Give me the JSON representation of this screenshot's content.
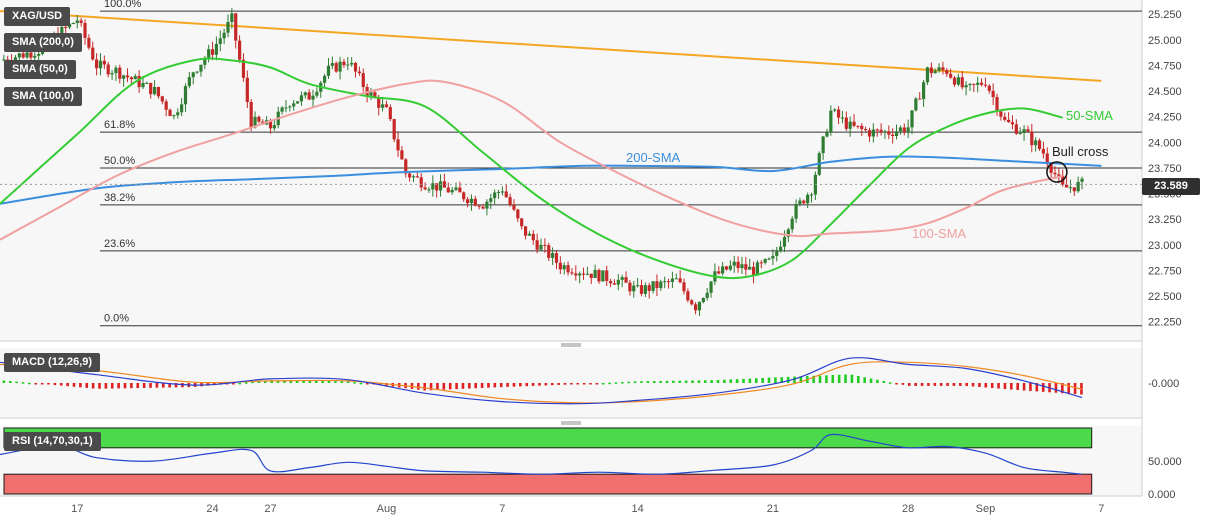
{
  "chart_data": [
    {
      "type": "line",
      "title": "",
      "symbol": "XAG/USD",
      "indicators": [
        "SMA (200,0)",
        "SMA (50,0)",
        "SMA (100,0)"
      ],
      "x_tick_labels": [
        "17",
        "24",
        "27",
        "Aug",
        "7",
        "14",
        "21",
        "28",
        "Sep",
        "7"
      ],
      "x_tick_days": [
        -15,
        -8,
        -5,
        1,
        7,
        14,
        21,
        28,
        32,
        38
      ],
      "ylim": [
        22.1,
        25.35
      ],
      "y_ticks": [
        22.25,
        22.5,
        22.75,
        23.0,
        23.25,
        23.5,
        23.75,
        24.0,
        24.25,
        24.5,
        24.75,
        25.0,
        25.25
      ],
      "y_tick_labels": [
        "22.250",
        "22.500",
        "22.750",
        "23.000",
        "23.250",
        "23.500",
        "23.750",
        "24.000",
        "24.250",
        "24.500",
        "24.750",
        "25.000",
        "25.250"
      ],
      "last_price": 23.589,
      "last_price_label": "23.589",
      "fib_levels": [
        {
          "label": "100.0%",
          "value": 25.28
        },
        {
          "label": "61.8%",
          "value": 24.1
        },
        {
          "label": "50.0%",
          "value": 23.75
        },
        {
          "label": "38.2%",
          "value": 23.39
        },
        {
          "label": "23.6%",
          "value": 22.94
        },
        {
          "label": "0.0%",
          "value": 22.21
        }
      ],
      "trendline": {
        "color": "#f5a623",
        "x": [
          -19,
          38
        ],
        "y": [
          25.28,
          24.6
        ]
      },
      "series": [
        {
          "name": "200-SMA",
          "color": "#3b8ede",
          "x": [
            -19,
            -14,
            -10,
            -6,
            -2,
            2,
            7,
            11,
            14,
            18,
            21,
            24,
            27,
            30,
            33,
            36,
            38
          ],
          "y": [
            23.4,
            23.55,
            23.61,
            23.64,
            23.67,
            23.71,
            23.74,
            23.77,
            23.77,
            23.76,
            23.72,
            23.81,
            23.86,
            23.85,
            23.82,
            23.79,
            23.77
          ]
        },
        {
          "name": "50-SMA",
          "color": "#33cc33",
          "x": [
            -19,
            -15,
            -12,
            -9,
            -7,
            -5,
            -3,
            0,
            3,
            6,
            9,
            12,
            15,
            18,
            20,
            22,
            24,
            26,
            28,
            30,
            32,
            34,
            36
          ],
          "y": [
            23.4,
            24.08,
            24.59,
            24.8,
            24.8,
            24.73,
            24.57,
            24.45,
            24.35,
            23.9,
            23.45,
            23.1,
            22.85,
            22.69,
            22.7,
            22.85,
            23.2,
            23.58,
            23.94,
            24.15,
            24.28,
            24.33,
            24.24
          ]
        },
        {
          "name": "100-SMA",
          "color": "#f0a0a0",
          "x": [
            -19,
            -16,
            -13,
            -10,
            -7,
            -4,
            -1,
            2,
            4,
            7,
            10,
            13,
            16,
            19,
            22,
            24,
            27,
            29,
            31,
            33,
            36
          ],
          "y": [
            23.05,
            23.36,
            23.67,
            23.9,
            24.08,
            24.27,
            24.44,
            24.57,
            24.59,
            24.4,
            24.0,
            23.7,
            23.43,
            23.21,
            23.09,
            23.11,
            23.14,
            23.21,
            23.36,
            23.54,
            23.67
          ]
        },
        {
          "name": "Price",
          "color": "#333333",
          "x": [
            -19,
            -17,
            -15,
            -14,
            -13,
            -11,
            -10,
            -9,
            -8,
            -7,
            -6,
            -5,
            -4,
            -3,
            -2,
            -1,
            0,
            1,
            2,
            3,
            4,
            6,
            7,
            8,
            10,
            11,
            12,
            13,
            14,
            16,
            17,
            18,
            19,
            20,
            21,
            22,
            23,
            24,
            25,
            26,
            27,
            28,
            29,
            30,
            31,
            32,
            33,
            34,
            35,
            36,
            37
          ],
          "y": [
            24.8,
            24.9,
            25.2,
            24.75,
            24.7,
            24.5,
            24.25,
            24.7,
            24.9,
            25.2,
            24.2,
            24.15,
            24.4,
            24.45,
            24.7,
            24.8,
            24.5,
            24.3,
            23.7,
            23.6,
            23.55,
            23.4,
            23.55,
            23.15,
            22.8,
            22.75,
            22.7,
            22.65,
            22.55,
            22.65,
            22.4,
            22.7,
            22.8,
            22.75,
            22.85,
            23.3,
            23.55,
            24.3,
            24.15,
            24.1,
            24.1,
            24.15,
            24.7,
            24.7,
            24.5,
            24.6,
            24.2,
            24.1,
            23.9,
            23.55,
            23.59
          ]
        }
      ],
      "annotations": [
        {
          "text": "200-SMA",
          "color": "#3b8ede"
        },
        {
          "text": "50-SMA",
          "color": "#33cc33"
        },
        {
          "text": "100-SMA",
          "color": "#f0a0a0"
        },
        {
          "text": "Bull cross",
          "color": "#222222"
        }
      ]
    },
    {
      "type": "bar",
      "title": "MACD (12,26,9)",
      "y_tick_labels": [
        "-0.000"
      ],
      "ylim": [
        -0.75,
        0.75
      ],
      "macd_line": {
        "x": [
          -19,
          -14,
          -9,
          -5,
          -1,
          3,
          7,
          11,
          14,
          18,
          22,
          25,
          28,
          31,
          34,
          37
        ],
        "y": [
          0.5,
          0.2,
          -0.05,
          0.1,
          0.08,
          -0.25,
          -0.45,
          -0.5,
          -0.42,
          -0.25,
          0.08,
          0.6,
          0.45,
          0.35,
          0.05,
          -0.35
        ]
      },
      "signal_line": {
        "x": [
          -19,
          -14,
          -9,
          -5,
          -1,
          3,
          7,
          11,
          14,
          18,
          22,
          25,
          28,
          31,
          34,
          37
        ],
        "y": [
          0.45,
          0.3,
          0.02,
          0.05,
          0.05,
          -0.12,
          -0.38,
          -0.48,
          -0.45,
          -0.3,
          -0.03,
          0.45,
          0.5,
          0.4,
          0.18,
          -0.15
        ]
      }
    },
    {
      "type": "line",
      "title": "RSI (14,70,30,1)",
      "ylim": [
        0,
        100
      ],
      "y_ticks": [
        0,
        50
      ],
      "y_tick_labels": [
        "0.000",
        "50.000"
      ],
      "overbought": 70,
      "oversold": 30,
      "series": [
        {
          "name": "RSI",
          "color": "#2244cc",
          "x": [
            -19,
            -16,
            -14,
            -11,
            -8,
            -6,
            -5,
            -3,
            -1,
            1,
            3,
            6,
            9,
            12,
            15,
            18,
            21,
            23,
            24,
            26,
            28,
            30,
            32,
            34,
            36,
            37
          ],
          "y": [
            60,
            73,
            55,
            50,
            62,
            66,
            35,
            40,
            48,
            42,
            35,
            33,
            30,
            33,
            30,
            36,
            44,
            66,
            90,
            80,
            70,
            72,
            62,
            40,
            33,
            30
          ]
        }
      ]
    }
  ]
}
